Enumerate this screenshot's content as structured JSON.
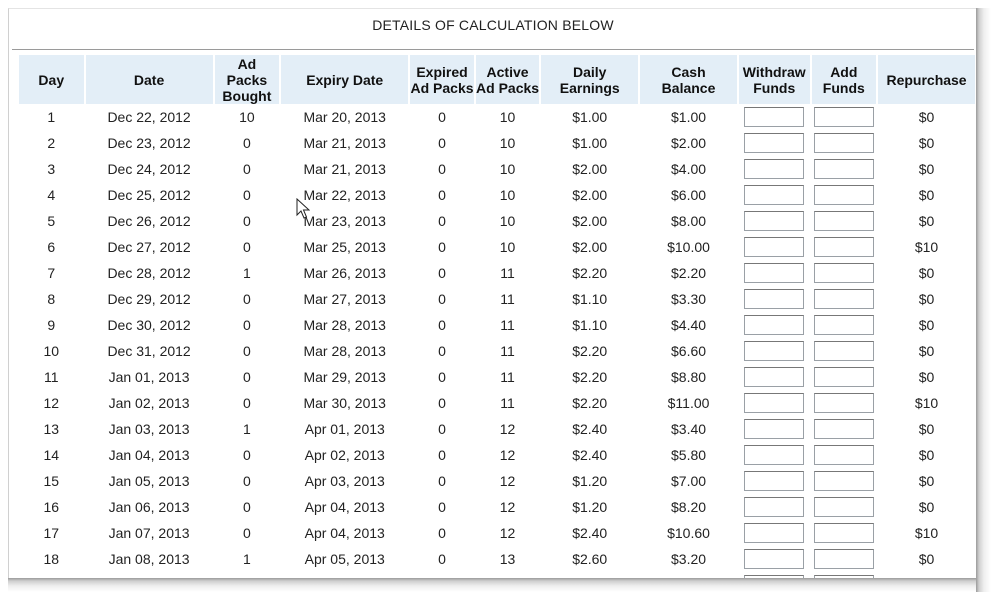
{
  "title": "DETAILS OF CALCULATION BELOW",
  "headers": {
    "day": "Day",
    "date": "Date",
    "packs_bought": [
      "Ad",
      "Packs",
      "Bought"
    ],
    "expiry": "Expiry Date",
    "expired": [
      "Expired",
      "Ad Packs"
    ],
    "active": [
      "Active",
      "Ad Packs"
    ],
    "daily": [
      "Daily",
      "Earnings"
    ],
    "cash": [
      "Cash",
      "Balance"
    ],
    "withdraw": [
      "Withdraw",
      "Funds"
    ],
    "add": [
      "Add",
      "Funds"
    ],
    "repurchase": "Repurchase"
  },
  "rows": [
    {
      "day": "1",
      "date": "Dec 22, 2012",
      "bought": "10",
      "expiry": "Mar 20, 2013",
      "expired": "0",
      "active": "10",
      "earnings": "$1.00",
      "balance": "$1.00",
      "withdraw": "",
      "add": "",
      "repurchase": "$0"
    },
    {
      "day": "2",
      "date": "Dec 23, 2012",
      "bought": "0",
      "expiry": "Mar 21, 2013",
      "expired": "0",
      "active": "10",
      "earnings": "$1.00",
      "balance": "$2.00",
      "withdraw": "",
      "add": "",
      "repurchase": "$0"
    },
    {
      "day": "3",
      "date": "Dec 24, 2012",
      "bought": "0",
      "expiry": "Mar 21, 2013",
      "expired": "0",
      "active": "10",
      "earnings": "$2.00",
      "balance": "$4.00",
      "withdraw": "",
      "add": "",
      "repurchase": "$0"
    },
    {
      "day": "4",
      "date": "Dec 25, 2012",
      "bought": "0",
      "expiry": "Mar 22, 2013",
      "expired": "0",
      "active": "10",
      "earnings": "$2.00",
      "balance": "$6.00",
      "withdraw": "",
      "add": "",
      "repurchase": "$0"
    },
    {
      "day": "5",
      "date": "Dec 26, 2012",
      "bought": "0",
      "expiry": "Mar 23, 2013",
      "expired": "0",
      "active": "10",
      "earnings": "$2.00",
      "balance": "$8.00",
      "withdraw": "",
      "add": "",
      "repurchase": "$0"
    },
    {
      "day": "6",
      "date": "Dec 27, 2012",
      "bought": "0",
      "expiry": "Mar 25, 2013",
      "expired": "0",
      "active": "10",
      "earnings": "$2.00",
      "balance": "$10.00",
      "withdraw": "",
      "add": "",
      "repurchase": "$10"
    },
    {
      "day": "7",
      "date": "Dec 28, 2012",
      "bought": "1",
      "expiry": "Mar 26, 2013",
      "expired": "0",
      "active": "11",
      "earnings": "$2.20",
      "balance": "$2.20",
      "withdraw": "",
      "add": "",
      "repurchase": "$0"
    },
    {
      "day": "8",
      "date": "Dec 29, 2012",
      "bought": "0",
      "expiry": "Mar 27, 2013",
      "expired": "0",
      "active": "11",
      "earnings": "$1.10",
      "balance": "$3.30",
      "withdraw": "",
      "add": "",
      "repurchase": "$0"
    },
    {
      "day": "9",
      "date": "Dec 30, 2012",
      "bought": "0",
      "expiry": "Mar 28, 2013",
      "expired": "0",
      "active": "11",
      "earnings": "$1.10",
      "balance": "$4.40",
      "withdraw": "",
      "add": "",
      "repurchase": "$0"
    },
    {
      "day": "10",
      "date": "Dec 31, 2012",
      "bought": "0",
      "expiry": "Mar 28, 2013",
      "expired": "0",
      "active": "11",
      "earnings": "$2.20",
      "balance": "$6.60",
      "withdraw": "",
      "add": "",
      "repurchase": "$0"
    },
    {
      "day": "11",
      "date": "Jan 01, 2013",
      "bought": "0",
      "expiry": "Mar 29, 2013",
      "expired": "0",
      "active": "11",
      "earnings": "$2.20",
      "balance": "$8.80",
      "withdraw": "",
      "add": "",
      "repurchase": "$0"
    },
    {
      "day": "12",
      "date": "Jan 02, 2013",
      "bought": "0",
      "expiry": "Mar 30, 2013",
      "expired": "0",
      "active": "11",
      "earnings": "$2.20",
      "balance": "$11.00",
      "withdraw": "",
      "add": "",
      "repurchase": "$10"
    },
    {
      "day": "13",
      "date": "Jan 03, 2013",
      "bought": "1",
      "expiry": "Apr 01, 2013",
      "expired": "0",
      "active": "12",
      "earnings": "$2.40",
      "balance": "$3.40",
      "withdraw": "",
      "add": "",
      "repurchase": "$0"
    },
    {
      "day": "14",
      "date": "Jan 04, 2013",
      "bought": "0",
      "expiry": "Apr 02, 2013",
      "expired": "0",
      "active": "12",
      "earnings": "$2.40",
      "balance": "$5.80",
      "withdraw": "",
      "add": "",
      "repurchase": "$0"
    },
    {
      "day": "15",
      "date": "Jan 05, 2013",
      "bought": "0",
      "expiry": "Apr 03, 2013",
      "expired": "0",
      "active": "12",
      "earnings": "$1.20",
      "balance": "$7.00",
      "withdraw": "",
      "add": "",
      "repurchase": "$0"
    },
    {
      "day": "16",
      "date": "Jan 06, 2013",
      "bought": "0",
      "expiry": "Apr 04, 2013",
      "expired": "0",
      "active": "12",
      "earnings": "$1.20",
      "balance": "$8.20",
      "withdraw": "",
      "add": "",
      "repurchase": "$0"
    },
    {
      "day": "17",
      "date": "Jan 07, 2013",
      "bought": "0",
      "expiry": "Apr 04, 2013",
      "expired": "0",
      "active": "12",
      "earnings": "$2.40",
      "balance": "$10.60",
      "withdraw": "",
      "add": "",
      "repurchase": "$10"
    },
    {
      "day": "18",
      "date": "Jan 08, 2013",
      "bought": "1",
      "expiry": "Apr 05, 2013",
      "expired": "0",
      "active": "13",
      "earnings": "$2.60",
      "balance": "$3.20",
      "withdraw": "",
      "add": "",
      "repurchase": "$0"
    }
  ],
  "colors": {
    "header_bg": "#e3eef7",
    "text": "#222222",
    "rule": "#9a9a9a"
  },
  "icons": {
    "cursor": "mouse-pointer-icon"
  }
}
